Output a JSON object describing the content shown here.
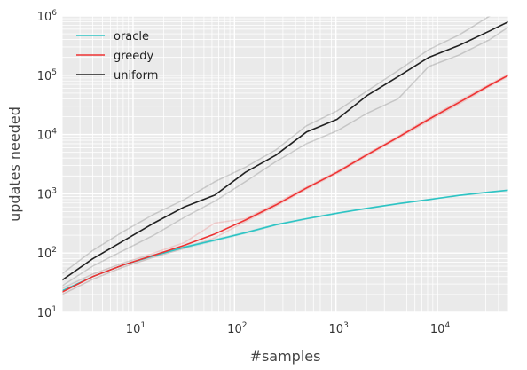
{
  "chart_data": {
    "type": "line",
    "title": "",
    "xlabel": "#samples",
    "ylabel": "updates needed",
    "x_scale": "log",
    "y_scale": "log",
    "xlim": [
      2,
      50000
    ],
    "ylim": [
      10,
      1000000
    ],
    "x_ticks": [
      {
        "value": 10,
        "base": "10",
        "exp": "1"
      },
      {
        "value": 100,
        "base": "10",
        "exp": "2"
      },
      {
        "value": 1000,
        "base": "10",
        "exp": "3"
      },
      {
        "value": 10000,
        "base": "10",
        "exp": "4"
      }
    ],
    "y_ticks": [
      {
        "value": 10,
        "base": "10",
        "exp": "1"
      },
      {
        "value": 100,
        "base": "10",
        "exp": "2"
      },
      {
        "value": 1000,
        "base": "10",
        "exp": "3"
      },
      {
        "value": 10000,
        "base": "10",
        "exp": "4"
      },
      {
        "value": 100000,
        "base": "10",
        "exp": "5"
      },
      {
        "value": 1000000,
        "base": "10",
        "exp": "6"
      }
    ],
    "grid": true,
    "legend_position": "top-left",
    "series": [
      {
        "name": "oracle",
        "color": "#2ec4c4",
        "x": [
          2,
          4,
          8,
          16,
          32,
          64,
          128,
          256,
          512,
          1024,
          2048,
          4096,
          8192,
          16384,
          32768,
          50000
        ],
        "y": [
          23,
          40,
          63,
          90,
          125,
          165,
          220,
          300,
          380,
          470,
          570,
          680,
          800,
          940,
          1070,
          1150
        ],
        "band_low": [
          20,
          36,
          58,
          85,
          120,
          160,
          215,
          295,
          375,
          465,
          565,
          675,
          795,
          935,
          1065,
          1145
        ],
        "band_high": [
          26,
          44,
          68,
          95,
          130,
          170,
          225,
          305,
          385,
          475,
          575,
          685,
          805,
          945,
          1075,
          1155
        ]
      },
      {
        "name": "greedy",
        "color": "#ee3333",
        "x": [
          2,
          4,
          8,
          16,
          32,
          64,
          128,
          256,
          512,
          1024,
          2048,
          4096,
          8192,
          16384,
          32768,
          50000
        ],
        "y": [
          22,
          40,
          63,
          92,
          135,
          210,
          360,
          650,
          1250,
          2300,
          4600,
          9000,
          18000,
          35000,
          68000,
          100000
        ],
        "band_low": [
          20,
          36,
          58,
          85,
          120,
          180,
          340,
          620,
          1200,
          2200,
          4400,
          8600,
          17000,
          33000,
          65000,
          96000
        ],
        "band_high": [
          25,
          44,
          68,
          100,
          150,
          320,
          380,
          690,
          1300,
          2400,
          4800,
          9400,
          19000,
          37000,
          71000,
          104000
        ]
      },
      {
        "name": "uniform",
        "color": "#222222",
        "x": [
          2,
          4,
          8,
          16,
          32,
          64,
          128,
          256,
          512,
          1024,
          2048,
          4096,
          8192,
          16384,
          32768,
          50000
        ],
        "y": [
          35,
          80,
          160,
          320,
          600,
          950,
          2300,
          4500,
          11000,
          18000,
          46000,
          95000,
          200000,
          320000,
          560000,
          800000
        ],
        "band_low": [
          28,
          60,
          110,
          200,
          400,
          750,
          1600,
          3500,
          7000,
          11500,
          23000,
          40000,
          140000,
          220000,
          400000,
          650000
        ],
        "band_high": [
          45,
          110,
          230,
          450,
          800,
          1600,
          2800,
          5500,
          14000,
          25000,
          55000,
          120000,
          270000,
          480000,
          1000000,
          1200000
        ]
      }
    ]
  }
}
